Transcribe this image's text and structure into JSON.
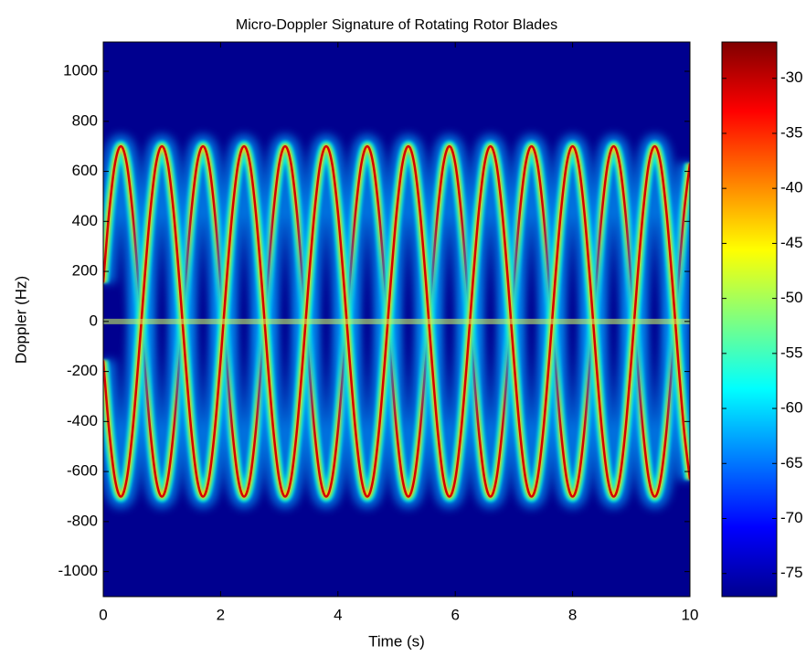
{
  "chart_data": {
    "type": "spectrogram",
    "title": "Micro-Doppler Signature of Rotating Rotor Blades",
    "xlabel": "Time (s)",
    "ylabel": "Doppler (Hz)",
    "xlim": [
      0,
      10
    ],
    "ylim": [
      -1100,
      1117
    ],
    "xticks": [
      0,
      2,
      4,
      6,
      8,
      10
    ],
    "yticks": [
      -1000,
      -800,
      -600,
      -400,
      -200,
      0,
      200,
      400,
      600,
      800,
      1000
    ],
    "colormap": "jet",
    "background": "#00008f",
    "clim": [
      -77.1,
      -26.7
    ],
    "cticks": [
      -75,
      -70,
      -65,
      -60,
      -55,
      -50,
      -45,
      -40,
      -35,
      -30
    ],
    "x": [
      0,
      0.1,
      0.2,
      0.3,
      0.4,
      0.5,
      0.6,
      0.7,
      0.8,
      0.9,
      1,
      1.1,
      1.2,
      1.3,
      1.4,
      1.5,
      1.6,
      1.7,
      1.8,
      1.9,
      2,
      2.1,
      2.2,
      2.3,
      2.4,
      2.5,
      2.6,
      2.7,
      2.8,
      2.9,
      3,
      3.1,
      3.2,
      3.3,
      3.4,
      3.5,
      3.6,
      3.7,
      3.8,
      3.9,
      4,
      4.1,
      4.2,
      4.3,
      4.4,
      4.5,
      4.6,
      4.7,
      4.8,
      4.9,
      5,
      5.1,
      5.2,
      5.3,
      5.4,
      5.5,
      5.6,
      5.7,
      5.8,
      5.9,
      6,
      6.1,
      6.2,
      6.3,
      6.4,
      6.5,
      6.6,
      6.7,
      6.8,
      6.9,
      7,
      7.1,
      7.2,
      7.3,
      7.4,
      7.5,
      7.6,
      7.7,
      7.8,
      7.9,
      8,
      8.1,
      8.2,
      8.3,
      8.4,
      8.5,
      8.6,
      8.7,
      8.8,
      8.9,
      9,
      9.1,
      9.2,
      9.3,
      9.4,
      9.5,
      9.6,
      9.7,
      9.8,
      9.9,
      10
    ],
    "series": [
      {
        "color": "#d40000",
        "values": [
          156,
          436,
          631,
          700,
          631,
          436,
          156,
          -156,
          -436,
          -631,
          -700,
          -631,
          -436,
          -156,
          156,
          436,
          631,
          700,
          631,
          436,
          156,
          -156,
          -436,
          -631,
          -700,
          -631,
          -436,
          -156,
          156,
          436,
          631,
          700,
          631,
          436,
          156,
          -156,
          -436,
          -631,
          -700,
          -631,
          -436,
          -156,
          156,
          436,
          631,
          700,
          631,
          436,
          156,
          -156,
          -436,
          -631,
          -700,
          -631,
          -436,
          -156,
          156,
          436,
          631,
          700,
          631,
          436,
          156,
          -156,
          -436,
          -631,
          -700,
          -631,
          -436,
          -156,
          156,
          436,
          631,
          700,
          631,
          436,
          156,
          -156,
          -436,
          -631,
          -700,
          -631,
          -436,
          -156,
          156,
          436,
          631,
          700,
          631,
          436,
          156,
          -156,
          -436,
          -631,
          -700,
          -631,
          -436,
          -156,
          156,
          436,
          631
        ]
      },
      {
        "color": "#d40000",
        "values": [
          -156,
          -436,
          -631,
          -700,
          -631,
          -436,
          -156,
          156,
          436,
          631,
          700,
          631,
          436,
          156,
          -156,
          -436,
          -631,
          -700,
          -631,
          -436,
          -156,
          156,
          436,
          631,
          700,
          631,
          436,
          156,
          -156,
          -436,
          -631,
          -700,
          -631,
          -436,
          -156,
          156,
          436,
          631,
          700,
          631,
          436,
          156,
          -156,
          -436,
          -631,
          -700,
          -631,
          -436,
          -156,
          156,
          436,
          631,
          700,
          631,
          436,
          156,
          -156,
          -436,
          -631,
          -700,
          -631,
          -436,
          -156,
          156,
          436,
          631,
          700,
          631,
          436,
          156,
          -156,
          -436,
          -631,
          -700,
          -631,
          -436,
          -156,
          156,
          436,
          631,
          700,
          631,
          436,
          156,
          -156,
          -436,
          -631,
          -700,
          -631,
          -436,
          -156,
          156,
          436,
          631,
          700,
          631,
          436,
          156,
          -156,
          -436,
          -631
        ]
      },
      {
        "color": "#6ff0a0",
        "values": [
          0,
          0,
          0,
          0,
          0,
          0,
          0,
          0,
          0,
          0,
          0,
          0,
          0,
          0,
          0,
          0,
          0,
          0,
          0,
          0,
          0,
          0,
          0,
          0,
          0,
          0,
          0,
          0,
          0,
          0,
          0,
          0,
          0,
          0,
          0,
          0,
          0,
          0,
          0,
          0,
          0,
          0,
          0,
          0,
          0,
          0,
          0,
          0,
          0,
          0,
          0,
          0,
          0,
          0,
          0,
          0,
          0,
          0,
          0,
          0,
          0,
          0,
          0,
          0,
          0,
          0,
          0,
          0,
          0,
          0,
          0,
          0,
          0,
          0,
          0,
          0,
          0,
          0,
          0,
          0,
          0,
          0,
          0,
          0,
          0,
          0,
          0,
          0,
          0,
          0,
          0,
          0,
          0,
          0,
          0,
          0,
          0,
          0,
          0,
          0,
          0
        ]
      }
    ]
  }
}
